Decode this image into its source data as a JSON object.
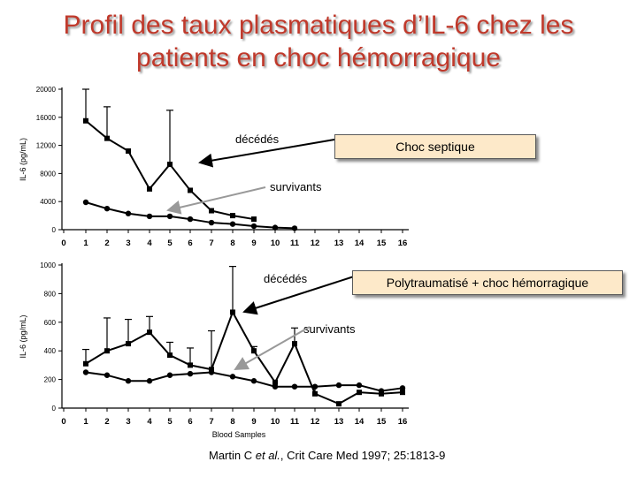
{
  "title": {
    "line1": "Profil des taux plasmatiques d’IL-6 chez les",
    "line2": "patients en choc hémorragique"
  },
  "callouts": {
    "septic": "Choc septique",
    "trauma": "Polytraumatisé + choc hémorragique"
  },
  "annotations": {
    "deceased_1": "décédés",
    "survivors_1": "survivants",
    "deceased_2": "décédés",
    "survivors_2": "survivants"
  },
  "citation": {
    "prefix": "Martin C ",
    "etal": "et al.",
    "suffix": ", Crit Care Med 1997; 25:1813-9"
  },
  "colors": {
    "title": "#c0392b",
    "callout_fill": "#fde9c9"
  },
  "chart_data": [
    {
      "type": "line",
      "title": "",
      "xlabel": "",
      "ylabel": "IL-6    (pg/mL)",
      "ylim": [
        0,
        20000
      ],
      "yticks": [
        0,
        4000,
        8000,
        12000,
        16000,
        20000
      ],
      "x": [
        "0",
        "1",
        "2",
        "3",
        "4",
        "5",
        "6",
        "7",
        "8",
        "9",
        "10",
        "11",
        "12",
        "13",
        "14",
        "15",
        "16"
      ],
      "series": [
        {
          "values": [
            null,
            15500,
            13000,
            11200,
            5800,
            9300,
            5600,
            2700,
            2000,
            1500,
            null,
            null,
            null,
            null,
            null,
            null,
            null
          ],
          "error_upper": [
            null,
            20000,
            17500,
            null,
            null,
            17000,
            null,
            null,
            null,
            null,
            null,
            null,
            null,
            null,
            null,
            null,
            null
          ],
          "marker": "square-filled"
        },
        {
          "values": [
            null,
            3900,
            3000,
            2300,
            1900,
            1900,
            1500,
            1000,
            800,
            500,
            300,
            200,
            null,
            null,
            null,
            null,
            null
          ],
          "marker": "circle-filled"
        }
      ]
    },
    {
      "type": "line",
      "title": "",
      "xlabel": "Blood Samples",
      "ylabel": "IL-6    (pg/mL)",
      "ylim": [
        0,
        1000
      ],
      "yticks": [
        0,
        200,
        400,
        600,
        800,
        1000
      ],
      "x": [
        "0",
        "1",
        "2",
        "3",
        "4",
        "5",
        "6",
        "7",
        "8",
        "9",
        "10",
        "11",
        "12",
        "13",
        "14",
        "15",
        "16"
      ],
      "series": [
        {
          "values": [
            null,
            310,
            400,
            450,
            530,
            370,
            300,
            270,
            670,
            400,
            180,
            450,
            100,
            30,
            110,
            100,
            110
          ],
          "error_upper": [
            null,
            410,
            630,
            620,
            640,
            460,
            420,
            540,
            990,
            430,
            null,
            560,
            150,
            null,
            null,
            null,
            null
          ],
          "marker": "square-filled"
        },
        {
          "values": [
            null,
            250,
            230,
            190,
            190,
            230,
            240,
            250,
            220,
            190,
            150,
            150,
            150,
            160,
            160,
            120,
            140
          ],
          "marker": "circle-filled"
        }
      ]
    }
  ]
}
